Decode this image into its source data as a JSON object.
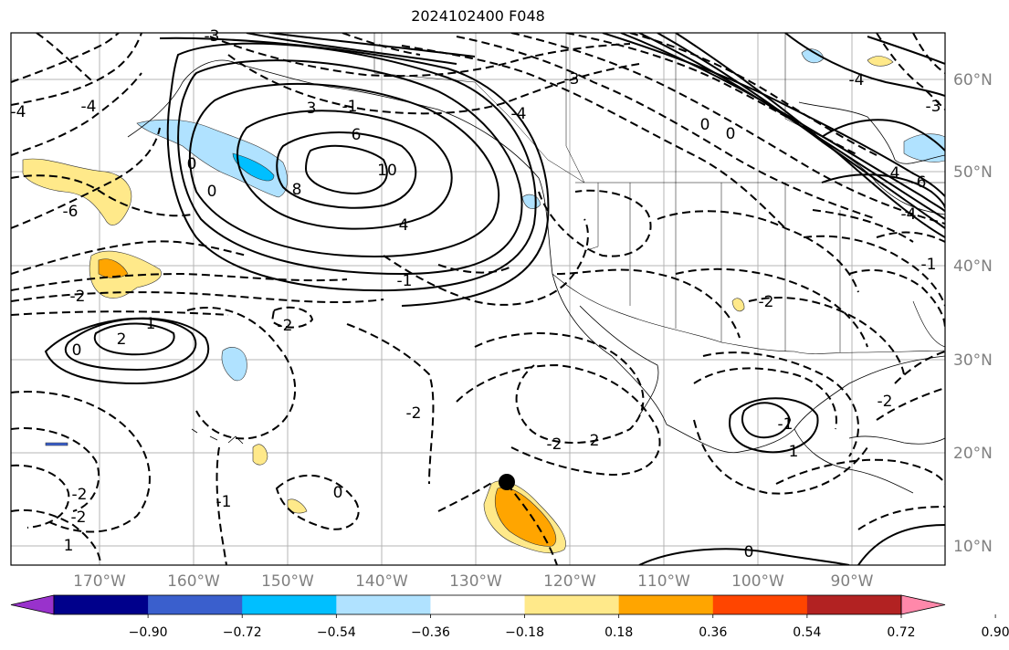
{
  "title": "2024102400 F048",
  "lat_labels": [
    "60°N",
    "50°N",
    "40°N",
    "30°N",
    "20°N",
    "10°N"
  ],
  "lon_labels": [
    "170°W",
    "160°W",
    "150°W",
    "140°W",
    "130°W",
    "120°W",
    "110°W",
    "100°W",
    "90°W"
  ],
  "colorbar": {
    "tick_labels": [
      "−0.90",
      "−0.72",
      "−0.54",
      "−0.36",
      "−0.18",
      "0.18",
      "0.36",
      "0.54",
      "0.72",
      "0.90"
    ],
    "colors": [
      "#9932CC",
      "#00008B",
      "#3A5FCD",
      "#00BFFF",
      "#B0E2FF",
      "#FFFFFF",
      "#FFE98A",
      "#FFA500",
      "#FF4500",
      "#B22222",
      "#FF88AA"
    ]
  },
  "contour_labels": [
    "-4",
    "-4",
    "-6",
    "-2",
    "0",
    "-2",
    "-2",
    "-2",
    "1",
    "-2",
    "1",
    "2",
    "0",
    "6",
    "8",
    "10",
    "4",
    "-1",
    "3",
    "-1",
    "-3",
    "-4",
    "-3",
    "0",
    "0",
    "-2",
    "2",
    "-2",
    "1",
    "0",
    "-1",
    "0",
    "0",
    "-2",
    "-6",
    "-4",
    "-3",
    "-1",
    "-4",
    "4",
    "-1"
  ],
  "marker": "storm-center-dot"
}
